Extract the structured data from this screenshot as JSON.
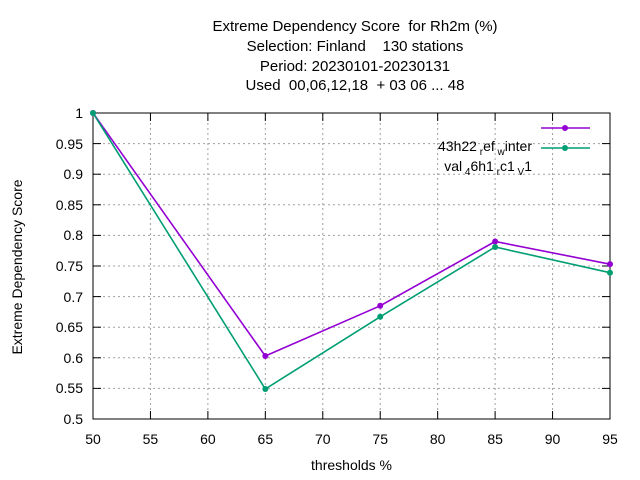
{
  "title_lines": [
    "Extreme Dependency Score  for Rh2m (%)",
    "Selection: Finland    130 stations",
    "Period: 20230101-20230131",
    "Used  00,06,12,18  + 03 06 ... 48"
  ],
  "chart_data": {
    "type": "line",
    "xlabel": "thresholds %",
    "ylabel": "Extreme Dependency Score",
    "xlim": [
      50,
      95
    ],
    "ylim": [
      0.5,
      1.0
    ],
    "x_ticks": [
      "50",
      "55",
      "60",
      "65",
      "70",
      "75",
      "80",
      "85",
      "90",
      "95"
    ],
    "y_ticks": [
      "0.5",
      "0.55",
      "0.6",
      "0.65",
      "0.7",
      "0.75",
      "0.8",
      "0.85",
      "0.9",
      "0.95",
      "1"
    ],
    "grid": true,
    "legend_position": "top-right",
    "x": [
      50,
      65,
      75,
      85,
      95
    ],
    "series": [
      {
        "name": "43h22_ref_winter",
        "color": "#9400d3",
        "values": [
          1.0,
          0.603,
          0.685,
          0.79,
          0.753
        ]
      },
      {
        "name": "val_46h1_rc1_V1",
        "color": "#009e73",
        "values": [
          1.0,
          0.549,
          0.667,
          0.781,
          0.739
        ]
      }
    ]
  },
  "legend_display": [
    {
      "parts": [
        "43h22",
        "r",
        "ef",
        "w",
        "inter"
      ]
    },
    {
      "parts": [
        "val",
        "4",
        "6h1",
        "r",
        "c1",
        "V",
        "1"
      ]
    }
  ]
}
